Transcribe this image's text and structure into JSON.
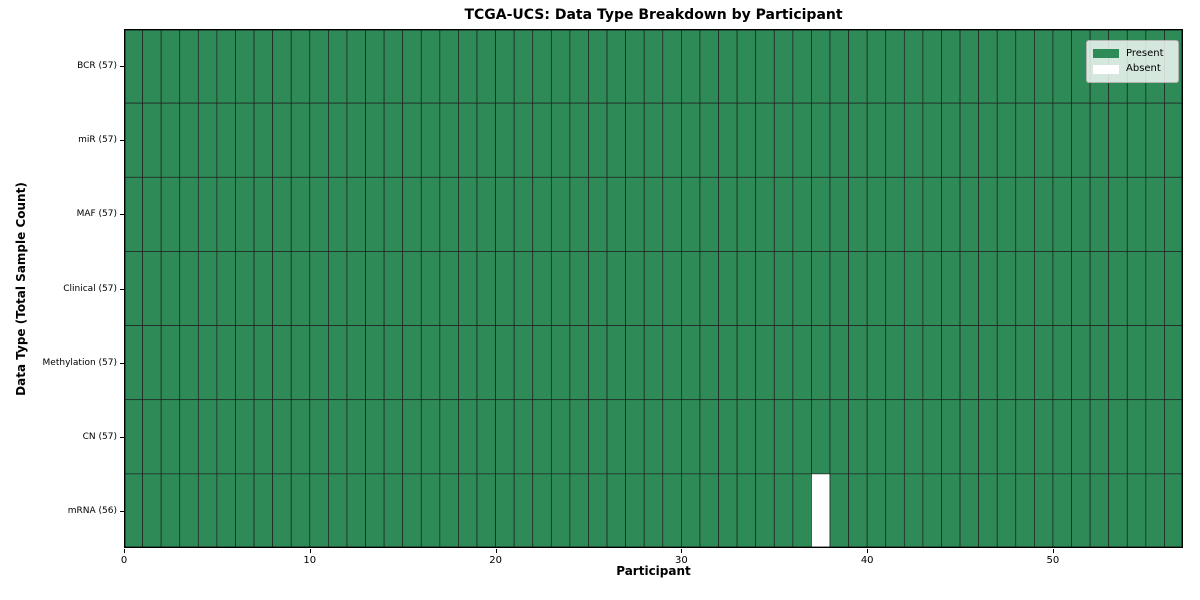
{
  "title": "TCGA-UCS: Data Type Breakdown by Participant",
  "chart_data": {
    "type": "heatmap",
    "title": "TCGA-UCS: Data Type Breakdown by Participant",
    "xlabel": "Participant",
    "ylabel": "Data Type (Total Sample Count)",
    "xlim": [
      0,
      57
    ],
    "x_ticks": [
      0,
      10,
      20,
      30,
      40,
      50
    ],
    "n_participants": 57,
    "rows": [
      {
        "label": "BCR (57)",
        "data_type": "BCR",
        "present_count": 57,
        "absent_participants": []
      },
      {
        "label": "miR (57)",
        "data_type": "miR",
        "present_count": 57,
        "absent_participants": []
      },
      {
        "label": "MAF (57)",
        "data_type": "MAF",
        "present_count": 57,
        "absent_participants": []
      },
      {
        "label": "Clinical (57)",
        "data_type": "Clinical",
        "present_count": 57,
        "absent_participants": []
      },
      {
        "label": "Methylation (57)",
        "data_type": "Methylation",
        "present_count": 57,
        "absent_participants": []
      },
      {
        "label": "CN (57)",
        "data_type": "CN",
        "present_count": 57,
        "absent_participants": []
      },
      {
        "label": "mRNA (56)",
        "data_type": "mRNA",
        "present_count": 56,
        "absent_participants": [
          37
        ]
      }
    ],
    "legend": {
      "position": "upper right",
      "items": [
        {
          "label": "Present",
          "color": "#2e8b57"
        },
        {
          "label": "Absent",
          "color": "#ffffff"
        }
      ]
    },
    "colors": {
      "present": "#2e8b57",
      "absent": "#ffffff",
      "cell_edge": "#1f1f1f",
      "spine": "#000000",
      "background": "#ffffff"
    },
    "grid": "per-cell borders"
  }
}
